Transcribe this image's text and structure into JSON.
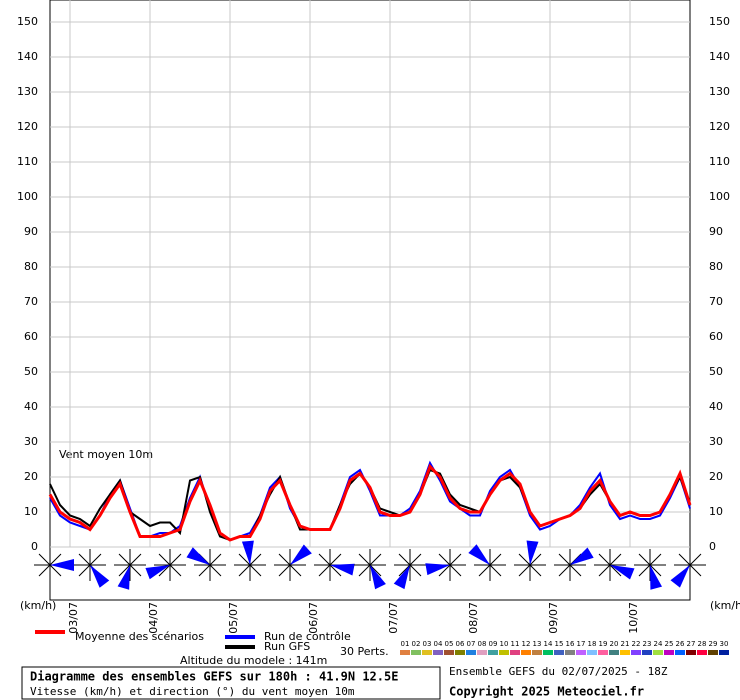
{
  "chart_data": {
    "type": "line",
    "annotation": "Vent moyen 10m",
    "unit_left": "(km/h)",
    "unit_right": "(km/h)",
    "x": [
      0,
      3,
      6,
      9,
      12,
      15,
      18,
      21,
      24,
      27,
      30,
      33,
      36,
      39,
      42,
      45,
      48,
      51,
      54,
      57,
      60,
      63,
      66,
      69,
      72,
      75,
      78,
      81,
      84,
      87,
      90,
      93,
      96,
      99,
      102,
      105,
      108,
      111,
      114,
      117,
      120,
      123,
      126,
      129,
      132,
      135,
      138,
      141,
      144,
      147,
      150,
      153,
      156,
      159,
      162,
      165,
      168,
      171,
      174,
      177,
      180,
      183,
      186,
      189,
      192
    ],
    "xlim": [
      0,
      192
    ],
    "xticks": [
      {
        "value": 6,
        "label": "03/07"
      },
      {
        "value": 30,
        "label": "04/07"
      },
      {
        "value": 54,
        "label": "05/07"
      },
      {
        "value": 78,
        "label": "06/07"
      },
      {
        "value": 102,
        "label": "07/07"
      },
      {
        "value": 126,
        "label": "08/07"
      },
      {
        "value": 150,
        "label": "09/07"
      },
      {
        "value": 174,
        "label": "10/07"
      }
    ],
    "ylim": [
      0,
      150
    ],
    "yticks": [
      0,
      10,
      20,
      30,
      40,
      50,
      60,
      70,
      80,
      90,
      100,
      110,
      120,
      130,
      140,
      150
    ],
    "grid": true,
    "series": [
      {
        "name": "Run de contrôle",
        "color": "#0000ff",
        "values": [
          14,
          9,
          7,
          6,
          5,
          9,
          15,
          19,
          11,
          3,
          3,
          4,
          4,
          6,
          14,
          20,
          11,
          4,
          2,
          3,
          4,
          9,
          17,
          20,
          11,
          6,
          5,
          5,
          5,
          12,
          20,
          22,
          16,
          9,
          9,
          9,
          11,
          16,
          24,
          19,
          13,
          11,
          9,
          9,
          16,
          20,
          22,
          17,
          9,
          5,
          6,
          8,
          9,
          12,
          17,
          21,
          12,
          8,
          9,
          8,
          8,
          9,
          14,
          20,
          11
        ]
      },
      {
        "name": "Run GFS",
        "color": "#000000",
        "values": [
          18,
          12,
          9,
          8,
          6,
          11,
          15,
          19,
          10,
          8,
          6,
          7,
          7,
          4,
          19,
          20,
          10,
          3,
          2,
          3,
          3,
          9,
          15,
          20,
          12,
          5,
          5,
          5,
          5,
          12,
          18,
          21,
          17,
          11,
          10,
          9,
          10,
          15,
          22,
          21,
          15,
          12,
          11,
          10,
          15,
          19,
          20,
          17,
          10,
          6,
          7,
          8,
          9,
          11,
          15,
          18,
          13,
          9,
          10,
          9,
          9,
          10,
          15,
          20,
          12
        ]
      },
      {
        "name": "Moyenne des scénarios",
        "color": "#ff0000",
        "values": [
          15,
          10,
          8,
          7,
          5,
          9,
          14,
          18,
          10,
          3,
          3,
          3,
          4,
          5,
          13,
          19,
          12,
          4,
          2,
          3,
          3,
          8,
          16,
          19,
          12,
          6,
          5,
          5,
          5,
          11,
          19,
          21,
          17,
          10,
          9,
          9,
          10,
          15,
          23,
          20,
          14,
          11,
          10,
          10,
          15,
          19,
          21,
          18,
          10,
          6,
          7,
          8,
          9,
          11,
          16,
          19,
          13,
          9,
          10,
          9,
          9,
          10,
          15,
          21,
          12
        ]
      }
    ],
    "legend": {
      "perturbations_label": "30 Perts.",
      "perturbations": [
        {
          "name": "01",
          "color": "#e08040"
        },
        {
          "name": "02",
          "color": "#80c060"
        },
        {
          "name": "03",
          "color": "#e0c020"
        },
        {
          "name": "04",
          "color": "#8060c0"
        },
        {
          "name": "05",
          "color": "#a05030"
        },
        {
          "name": "06",
          "color": "#808000"
        },
        {
          "name": "07",
          "color": "#2080e0"
        },
        {
          "name": "08",
          "color": "#e0a0c0"
        },
        {
          "name": "09",
          "color": "#40a0a0"
        },
        {
          "name": "10",
          "color": "#c0c000"
        },
        {
          "name": "11",
          "color": "#e04080"
        },
        {
          "name": "12",
          "color": "#ff8000"
        },
        {
          "name": "13",
          "color": "#c08040"
        },
        {
          "name": "14",
          "color": "#00c060"
        },
        {
          "name": "15",
          "color": "#4060c0"
        },
        {
          "name": "16",
          "color": "#808080"
        },
        {
          "name": "17",
          "color": "#c060ff"
        },
        {
          "name": "18",
          "color": "#80c0ff"
        },
        {
          "name": "19",
          "color": "#ff60a0"
        },
        {
          "name": "20",
          "color": "#408080"
        },
        {
          "name": "21",
          "color": "#ffc000"
        },
        {
          "name": "22",
          "color": "#8040ff"
        },
        {
          "name": "23",
          "color": "#2040c0"
        },
        {
          "name": "24",
          "color": "#a0e040"
        },
        {
          "name": "25",
          "color": "#c000c0"
        },
        {
          "name": "26",
          "color": "#0060ff"
        },
        {
          "name": "27",
          "color": "#800000"
        },
        {
          "name": "28",
          "color": "#ff0040"
        },
        {
          "name": "29",
          "color": "#604000"
        },
        {
          "name": "30",
          "color": "#0020a0"
        }
      ]
    },
    "altitude": "Altitude du modele : 141m",
    "title": "Diagramme des ensembles GEFS sur 180h : 41.9N 12.5E",
    "subtitle": "Vitesse (km/h) et direction (°) du vent moyen 10m",
    "run_info": "Ensemble GEFS du 02/07/2025 - 18Z",
    "copyright": "Copyright 2025 Meteociel.fr"
  }
}
